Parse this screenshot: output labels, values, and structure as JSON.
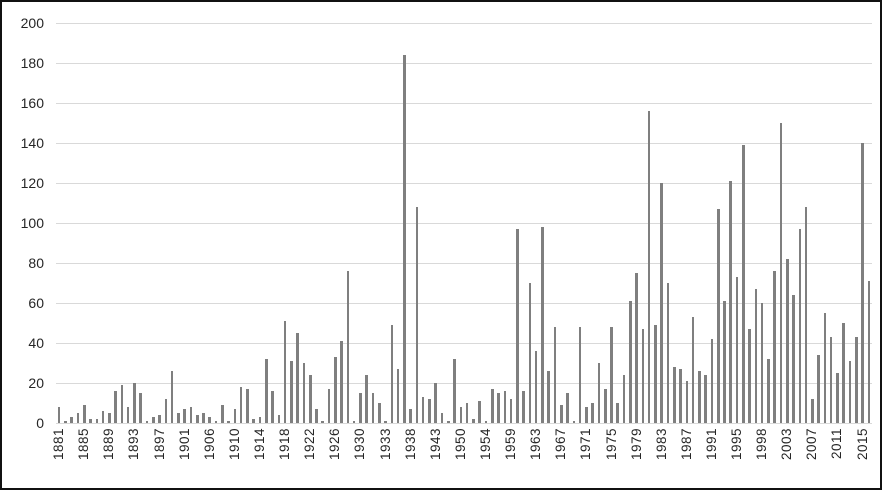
{
  "chart_data": {
    "type": "bar",
    "title": "",
    "xlabel": "",
    "ylabel": "",
    "ylim": [
      0,
      200
    ],
    "y_ticks": [
      0,
      20,
      40,
      60,
      80,
      100,
      120,
      140,
      160,
      180,
      200
    ],
    "grid": true,
    "legend": "none",
    "x_labels": [
      "1881",
      "1885",
      "1889",
      "1893",
      "1897",
      "1901",
      "1906",
      "1910",
      "1914",
      "1918",
      "1922",
      "1926",
      "1930",
      "1933",
      "1938",
      "1943",
      "1950",
      "1954",
      "1959",
      "1963",
      "1967",
      "1971",
      "1975",
      "1979",
      "1983",
      "1987",
      "1991",
      "1995",
      "1998",
      "2003",
      "2007",
      "2011",
      "2015"
    ],
    "label_interval": 4,
    "values": [
      8,
      1,
      3,
      5,
      9,
      2,
      2,
      6,
      5,
      16,
      19,
      8,
      20,
      15,
      1,
      3,
      4,
      12,
      26,
      5,
      7,
      8,
      4,
      5,
      3,
      1,
      9,
      1,
      7,
      18,
      17,
      2,
      3,
      32,
      16,
      4,
      51,
      31,
      45,
      30,
      24,
      7,
      1,
      17,
      33,
      41,
      76,
      1,
      15,
      24,
      15,
      10,
      1,
      49,
      27,
      184,
      7,
      108,
      13,
      12,
      20,
      5,
      1,
      32,
      8,
      10,
      2,
      11,
      1,
      17,
      15,
      16,
      12,
      97,
      16,
      70,
      36,
      98,
      26,
      48,
      9,
      15,
      1,
      48,
      8,
      10,
      30,
      17,
      48,
      10,
      24,
      61,
      75,
      47,
      156,
      49,
      120,
      70,
      28,
      27,
      21,
      53,
      26,
      24,
      42,
      107,
      61,
      121,
      73,
      139,
      47,
      67,
      60,
      32,
      76,
      150,
      82,
      64,
      97,
      108,
      12,
      34,
      55,
      43,
      25,
      50,
      31,
      43,
      140,
      71
    ],
    "colors": {
      "bar": "#7f7f7f",
      "gridline": "#d9d9d9",
      "text": "#262626",
      "border": "#111111",
      "background": "#ffffff"
    }
  }
}
